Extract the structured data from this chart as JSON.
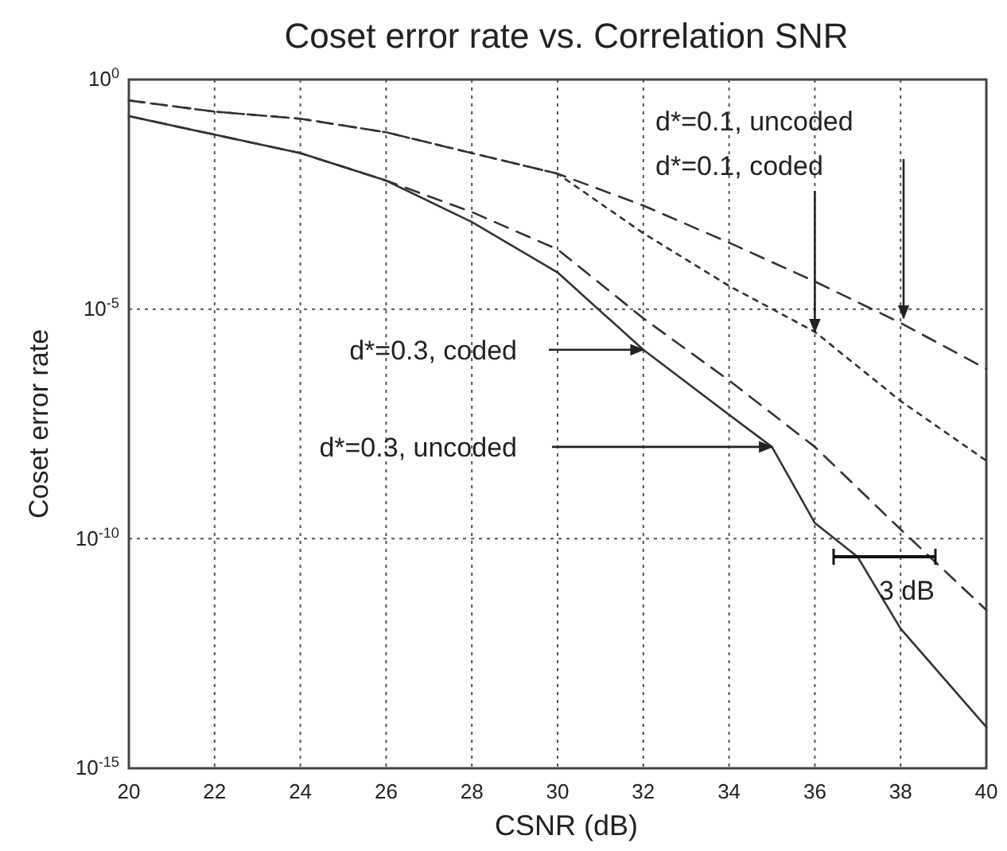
{
  "chart_data": {
    "type": "line",
    "title": "Coset error rate vs. Correlation SNR",
    "xlabel": "CSNR (dB)",
    "ylabel": "Coset error rate",
    "log": "y",
    "grid": true,
    "xlim": [
      20,
      40
    ],
    "xticks": [
      20,
      22,
      24,
      26,
      28,
      30,
      32,
      34,
      36,
      38,
      40
    ],
    "ylim": [
      1e-15,
      1
    ],
    "yticks": [
      {
        "value": 1,
        "label": "10$^{0}$"
      },
      {
        "value": 1e-05,
        "label": "10$^{-5}$"
      },
      {
        "value": 1e-10,
        "label": "10$^{-10}$"
      },
      {
        "value": 1e-15,
        "label": "10$^{-15}$"
      }
    ],
    "series": [
      {
        "color": "#333333",
        "line_style": "solid",
        "x": [
          20,
          22,
          24,
          26,
          28,
          30,
          32,
          34,
          35,
          36,
          37,
          38,
          40
        ],
        "values": [
          0.16,
          0.063,
          0.025,
          0.0063,
          0.00079,
          6.3e-05,
          1.3e-06,
          5e-08,
          1e-08,
          2.2e-10,
          4e-11,
          1.1e-12,
          7.9e-15
        ]
      },
      {
        "color": "#333333",
        "line_style": "dashed",
        "x": [
          20,
          22,
          24,
          26,
          28,
          30,
          32,
          34,
          36,
          38,
          40
        ],
        "values": [
          0.16,
          0.063,
          0.025,
          0.0063,
          0.0013,
          0.0002,
          6.3e-06,
          2.8e-07,
          1e-08,
          1.6e-10,
          2.8e-12
        ]
      },
      {
        "color": "#333333",
        "line_style": "dashed",
        "x": [
          20,
          22,
          24,
          26,
          28,
          30,
          32,
          34,
          36,
          38,
          40
        ],
        "values": [
          0.35,
          0.2,
          0.14,
          0.071,
          0.025,
          0.0089,
          0.0018,
          0.00028,
          4e-05,
          5e-06,
          5e-07
        ]
      },
      {
        "color": "#333333",
        "line_style": "dotted",
        "x": [
          20,
          22,
          24,
          26,
          28,
          30,
          32,
          34,
          36,
          38,
          40
        ],
        "values": [
          0.35,
          0.2,
          0.14,
          0.071,
          0.025,
          0.0089,
          0.00045,
          3.2e-05,
          3.2e-06,
          1e-07,
          5e-09
        ]
      }
    ],
    "annotations": [
      "d*=0.1, uncoded",
      {
        "text": "d*=0.1, coded",
        "x": 36,
        "y": 3.2e-06
      },
      {
        "text": "d*=0.3, coded",
        "x": 32,
        "y": 1.3e-06
      },
      {
        "text": "d*=0.3, uncoded",
        "x": 35,
        "y": 1e-08
      },
      "3 dB"
    ]
  }
}
